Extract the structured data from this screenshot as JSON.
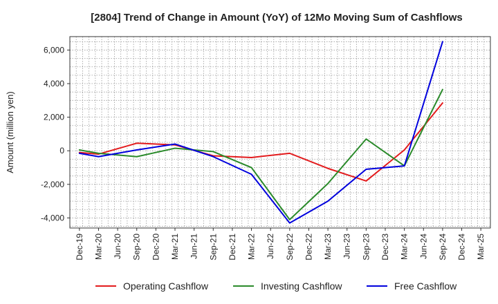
{
  "chart_data": {
    "type": "line",
    "title": "[2804]  Trend of Change in Amount (YoY) of 12Mo Moving Sum of Cashflows",
    "xlabel": "",
    "ylabel": "Amount (million yen)",
    "ylim": [
      -4600,
      6800
    ],
    "yticks": [
      -4000,
      -2000,
      0,
      2000,
      4000,
      6000
    ],
    "ytick_labels": [
      "-4,000",
      "-2,000",
      "0",
      "2,000",
      "4,000",
      "6,000"
    ],
    "grid": true,
    "legend_position": "bottom",
    "categories": [
      "Dec-19",
      "Mar-20",
      "Jun-20",
      "Sep-20",
      "Dec-20",
      "Mar-21",
      "Jun-21",
      "Sep-21",
      "Dec-21",
      "Mar-22",
      "Jun-22",
      "Sep-22",
      "Dec-22",
      "Mar-23",
      "Jun-23",
      "Sep-23",
      "Dec-23",
      "Mar-24",
      "Jun-24",
      "Sep-24",
      "Dec-24",
      "Mar-25"
    ],
    "series": [
      {
        "name": "Operating Cashflow",
        "color": "#e31a1c",
        "values": [
          -100,
          -200,
          null,
          450,
          null,
          350,
          null,
          -300,
          null,
          -400,
          null,
          -150,
          null,
          -1050,
          null,
          -1800,
          null,
          50,
          null,
          2850,
          null,
          null
        ]
      },
      {
        "name": "Investing Cashflow",
        "color": "#2a8a2a",
        "values": [
          50,
          -150,
          null,
          -350,
          null,
          150,
          null,
          -50,
          null,
          -1000,
          null,
          -4100,
          null,
          -1950,
          null,
          700,
          null,
          -900,
          null,
          3650,
          null,
          null
        ]
      },
      {
        "name": "Free Cashflow",
        "color": "#0000dd",
        "values": [
          -150,
          -350,
          null,
          50,
          null,
          400,
          null,
          -350,
          null,
          -1400,
          null,
          -4300,
          null,
          -3000,
          null,
          -1100,
          null,
          -900,
          null,
          6500,
          null,
          null
        ]
      }
    ]
  }
}
